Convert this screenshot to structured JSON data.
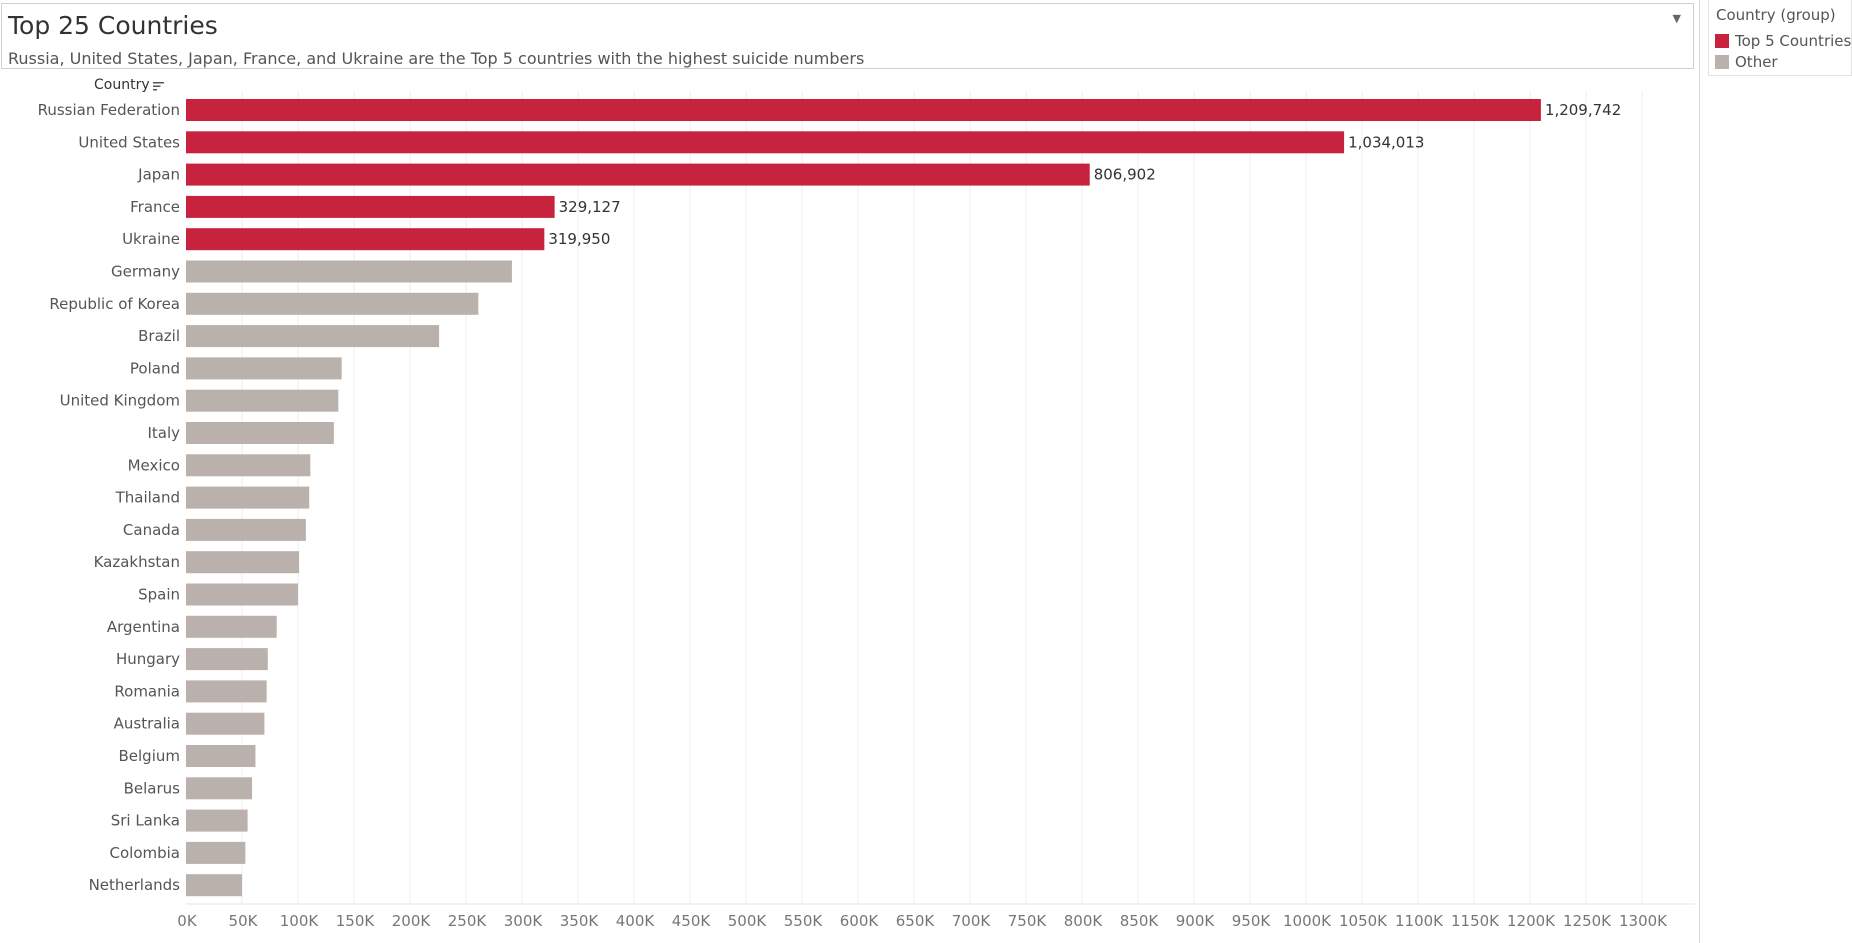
{
  "header": {
    "title": "Top 25 Countries",
    "subtitle": "Russia, United States, Japan, France, and Ukraine are the Top 5 countries with the highest suicide numbers",
    "dropdown_icon": "chevron-down-icon"
  },
  "legend": {
    "title": "Country (group)",
    "items": [
      {
        "label": "Top 5 Countries",
        "color": "#C8233E"
      },
      {
        "label": "Other",
        "color": "#BAB0AC"
      }
    ]
  },
  "colors": {
    "top5": "#C8233E",
    "other": "#BAB0AC",
    "grid": "#eeeeee",
    "axis_text": "#777777",
    "row_label": "#555555",
    "data_label": "#333333"
  },
  "chart_data": {
    "type": "bar",
    "orientation": "horizontal",
    "title": "Top 25 Countries",
    "subtitle": "Russia, United States, Japan, France, and Ukraine are the Top 5 countries with the highest suicide numbers",
    "ylabel": "Country",
    "xlabel": "",
    "xlim": [
      0,
      1350000
    ],
    "grid": true,
    "legend_position": "top-right",
    "x_ticks": [
      0,
      50000,
      100000,
      150000,
      200000,
      250000,
      300000,
      350000,
      400000,
      450000,
      500000,
      550000,
      600000,
      650000,
      700000,
      750000,
      800000,
      850000,
      900000,
      950000,
      1000000,
      1050000,
      1100000,
      1150000,
      1200000,
      1250000,
      1300000
    ],
    "x_tick_labels": [
      "0K",
      "50K",
      "100K",
      "150K",
      "200K",
      "250K",
      "300K",
      "350K",
      "400K",
      "450K",
      "500K",
      "550K",
      "600K",
      "650K",
      "700K",
      "750K",
      "800K",
      "850K",
      "900K",
      "950K",
      "1000K",
      "1050K",
      "1100K",
      "1150K",
      "1200K",
      "1250K",
      "1300K"
    ],
    "categories": [
      "Russian Federation",
      "United States",
      "Japan",
      "France",
      "Ukraine",
      "Germany",
      "Republic of Korea",
      "Brazil",
      "Poland",
      "United Kingdom",
      "Italy",
      "Mexico",
      "Thailand",
      "Canada",
      "Kazakhstan",
      "Spain",
      "Argentina",
      "Hungary",
      "Romania",
      "Australia",
      "Belgium",
      "Belarus",
      "Sri Lanka",
      "Colombia",
      "Netherlands"
    ],
    "values": [
      1209742,
      1034013,
      806902,
      329127,
      319950,
      291000,
      261000,
      226000,
      139000,
      136000,
      132000,
      111000,
      110000,
      107000,
      101000,
      100000,
      81000,
      73000,
      72000,
      70000,
      62000,
      59000,
      55000,
      53000,
      50000
    ],
    "groups": [
      "Top 5 Countries",
      "Top 5 Countries",
      "Top 5 Countries",
      "Top 5 Countries",
      "Top 5 Countries",
      "Other",
      "Other",
      "Other",
      "Other",
      "Other",
      "Other",
      "Other",
      "Other",
      "Other",
      "Other",
      "Other",
      "Other",
      "Other",
      "Other",
      "Other",
      "Other",
      "Other",
      "Other",
      "Other",
      "Other"
    ],
    "data_labels": [
      "1,209,742",
      "1,034,013",
      "806,902",
      "329,127",
      "319,950",
      "",
      "",
      "",
      "",
      "",
      "",
      "",
      "",
      "",
      "",
      "",
      "",
      "",
      "",
      "",
      "",
      "",
      "",
      "",
      ""
    ]
  }
}
